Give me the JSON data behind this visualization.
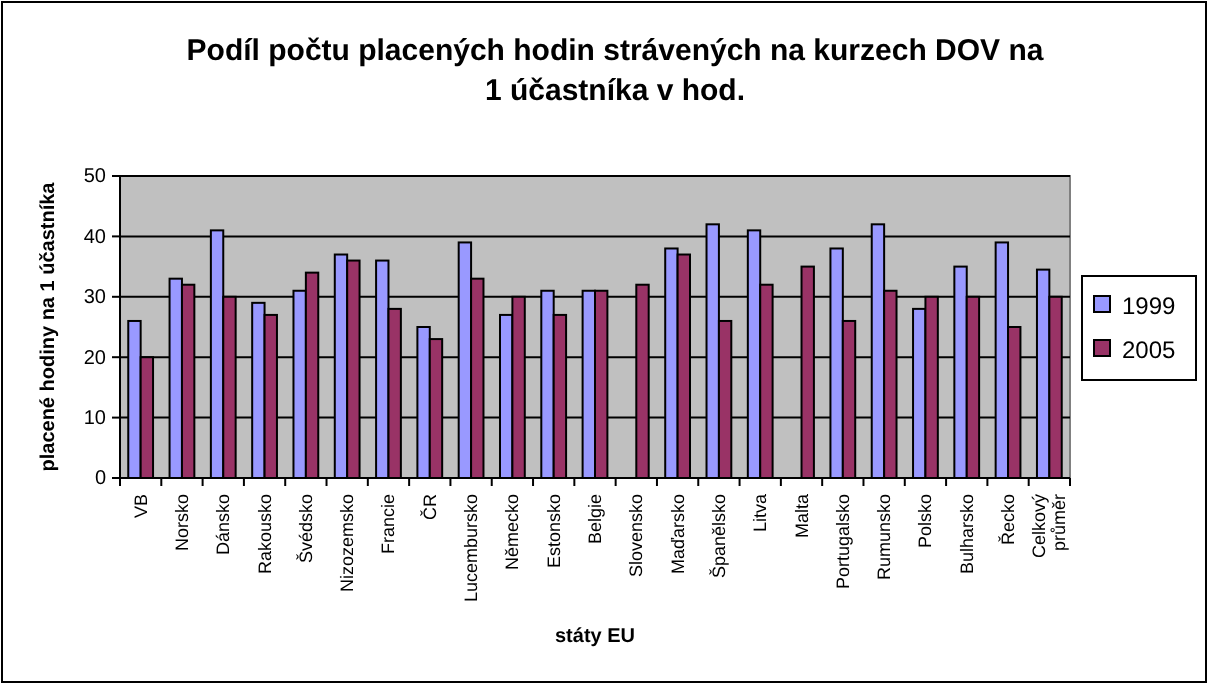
{
  "chart_data": {
    "type": "bar",
    "title": "Podíl počtu placených hodin strávených na kurzech DOV na 1 účastníka v hod.",
    "xlabel": "státy EU",
    "ylabel": "placené hodiny na 1 účastníka",
    "categories": [
      "VB",
      "Norsko",
      "Dánsko",
      "Rakousko",
      "Švédsko",
      "Nizozemsko",
      "Francie",
      "ČR",
      "Lucembursko",
      "Německo",
      "Estonsko",
      "Belgie",
      "Slovensko",
      "Maďarsko",
      "Španělsko",
      "Litva",
      "Malta",
      "Portugalsko",
      "Rumunsko",
      "Polsko",
      "Bulharsko",
      "Řecko",
      "Celkový průměr"
    ],
    "series": [
      {
        "name": "1999",
        "color": "#9999ff",
        "values": [
          26,
          33,
          41,
          29,
          31,
          37,
          36,
          25,
          39,
          27,
          31,
          31,
          null,
          38,
          42,
          41,
          null,
          38,
          42,
          28,
          35,
          39,
          34.5
        ]
      },
      {
        "name": "2005",
        "color": "#993366",
        "values": [
          20,
          32,
          30,
          27,
          34,
          36,
          28,
          23,
          33,
          30,
          27,
          31,
          32,
          37,
          26,
          32,
          35,
          26,
          31,
          30,
          30,
          25,
          30
        ]
      }
    ],
    "ylim": [
      0,
      50
    ],
    "yticks": [
      0,
      10,
      20,
      30,
      40,
      50
    ],
    "grid": "y",
    "legend": "right"
  }
}
